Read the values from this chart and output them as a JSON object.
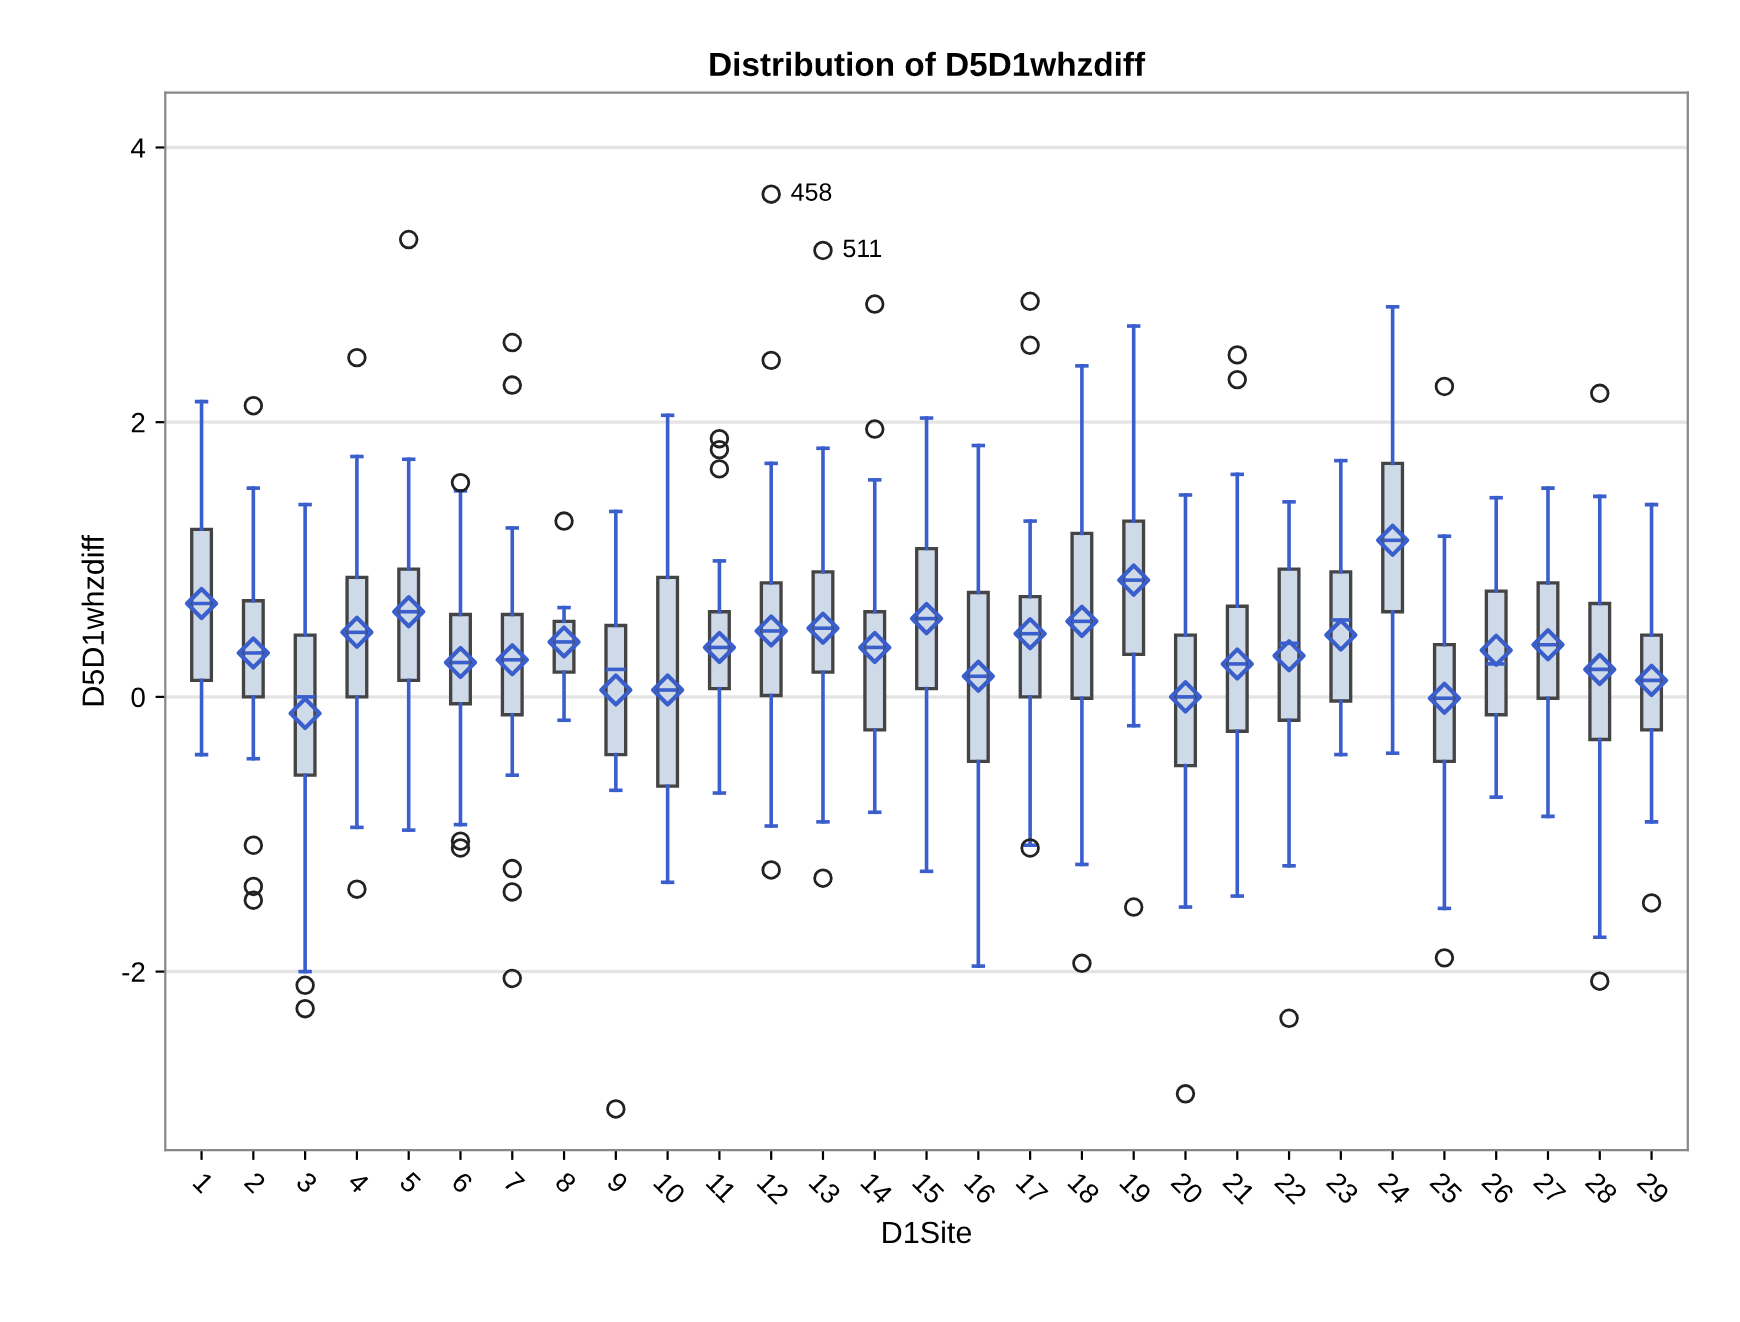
{
  "chart_data": {
    "type": "box",
    "title": "Distribution of D5D1whzdiff",
    "xlabel": "D1Site",
    "ylabel": "D5D1whzdiff",
    "categories": [
      "1",
      "2",
      "3",
      "4",
      "5",
      "6",
      "7",
      "8",
      "9",
      "10",
      "11",
      "12",
      "13",
      "14",
      "15",
      "16",
      "17",
      "18",
      "19",
      "20",
      "21",
      "22",
      "23",
      "24",
      "25",
      "26",
      "27",
      "28",
      "29"
    ],
    "series": [
      {
        "color": "#cfdae9",
        "boxes": [
          {
            "low": -0.42,
            "q1": 0.12,
            "median": 0.68,
            "q3": 1.22,
            "high": 2.15,
            "mean": 0.68
          },
          {
            "low": -0.45,
            "q1": 0.0,
            "median": 0.32,
            "q3": 0.7,
            "high": 1.52,
            "mean": 0.32,
            "outliers": [
              2.12,
              -1.08,
              -1.38,
              -1.48
            ]
          },
          {
            "low": -2.0,
            "q1": -0.57,
            "median": 0.0,
            "q3": 0.45,
            "high": 1.4,
            "mean": -0.12,
            "outliers": [
              -2.1,
              -2.27
            ]
          },
          {
            "low": -0.95,
            "q1": 0.0,
            "median": 0.47,
            "q3": 0.87,
            "high": 1.75,
            "mean": 0.47,
            "outliers": [
              2.47,
              -1.4
            ]
          },
          {
            "low": -0.97,
            "q1": 0.12,
            "median": 0.62,
            "q3": 0.93,
            "high": 1.73,
            "mean": 0.62,
            "outliers": [
              3.33
            ]
          },
          {
            "low": -0.93,
            "q1": -0.05,
            "median": 0.25,
            "q3": 0.6,
            "high": 1.5,
            "mean": 0.25,
            "outliers": [
              1.56,
              -1.05,
              -1.1
            ]
          },
          {
            "low": -0.57,
            "q1": -0.13,
            "median": 0.27,
            "q3": 0.6,
            "high": 1.23,
            "mean": 0.27,
            "outliers": [
              2.58,
              2.27,
              -1.25,
              -1.42,
              -2.05
            ]
          },
          {
            "low": -0.17,
            "q1": 0.18,
            "median": 0.4,
            "q3": 0.55,
            "high": 0.65,
            "mean": 0.4,
            "outliers": [
              1.28
            ]
          },
          {
            "low": -0.68,
            "q1": -0.42,
            "median": 0.2,
            "q3": 0.52,
            "high": 1.35,
            "mean": 0.05,
            "outliers": [
              -3.0
            ]
          },
          {
            "low": -1.35,
            "q1": -0.65,
            "median": 0.05,
            "q3": 0.87,
            "high": 2.05,
            "mean": 0.05
          },
          {
            "low": -0.7,
            "q1": 0.06,
            "median": 0.36,
            "q3": 0.62,
            "high": 0.99,
            "mean": 0.36,
            "outliers": [
              1.66,
              1.8,
              1.88
            ]
          },
          {
            "low": -0.94,
            "q1": 0.01,
            "median": 0.48,
            "q3": 0.83,
            "high": 1.7,
            "mean": 0.48,
            "outliers": [
              3.66,
              2.45,
              -1.26
            ]
          },
          {
            "low": -0.91,
            "q1": 0.18,
            "median": 0.5,
            "q3": 0.91,
            "high": 1.81,
            "mean": 0.5,
            "outliers": [
              3.25,
              -1.32
            ]
          },
          {
            "low": -0.84,
            "q1": -0.24,
            "median": 0.36,
            "q3": 0.62,
            "high": 1.58,
            "mean": 0.36,
            "outliers": [
              2.86,
              1.95
            ]
          },
          {
            "low": -1.27,
            "q1": 0.06,
            "median": 0.57,
            "q3": 1.08,
            "high": 2.03,
            "mean": 0.57
          },
          {
            "low": -1.96,
            "q1": -0.47,
            "median": 0.15,
            "q3": 0.76,
            "high": 1.83,
            "mean": 0.15
          },
          {
            "low": -1.08,
            "q1": 0.0,
            "median": 0.46,
            "q3": 0.73,
            "high": 1.28,
            "mean": 0.46,
            "outliers": [
              2.88,
              2.56,
              -1.1
            ]
          },
          {
            "low": -1.22,
            "q1": -0.01,
            "median": 0.55,
            "q3": 1.19,
            "high": 2.41,
            "mean": 0.55,
            "outliers": [
              -1.94
            ]
          },
          {
            "low": -0.21,
            "q1": 0.31,
            "median": 0.85,
            "q3": 1.28,
            "high": 2.7,
            "mean": 0.85,
            "outliers": [
              -1.53
            ]
          },
          {
            "low": -1.53,
            "q1": -0.5,
            "median": 0.0,
            "q3": 0.45,
            "high": 1.47,
            "mean": 0.0,
            "outliers": [
              -2.89
            ]
          },
          {
            "low": -1.45,
            "q1": -0.25,
            "median": 0.24,
            "q3": 0.66,
            "high": 1.62,
            "mean": 0.24,
            "outliers": [
              2.49,
              2.31
            ]
          },
          {
            "low": -1.23,
            "q1": -0.17,
            "median": 0.39,
            "q3": 0.93,
            "high": 1.42,
            "mean": 0.3,
            "outliers": [
              -2.34
            ]
          },
          {
            "low": -0.42,
            "q1": -0.03,
            "median": 0.56,
            "q3": 0.91,
            "high": 1.72,
            "mean": 0.45
          },
          {
            "low": -0.41,
            "q1": 0.62,
            "median": 1.14,
            "q3": 1.7,
            "high": 2.84,
            "mean": 1.14
          },
          {
            "low": -1.54,
            "q1": -0.47,
            "median": -0.01,
            "q3": 0.38,
            "high": 1.17,
            "mean": -0.01,
            "outliers": [
              2.26,
              -1.9
            ]
          },
          {
            "low": -0.73,
            "q1": -0.13,
            "median": 0.24,
            "q3": 0.77,
            "high": 1.45,
            "mean": 0.34
          },
          {
            "low": -0.87,
            "q1": -0.01,
            "median": 0.38,
            "q3": 0.83,
            "high": 1.52,
            "mean": 0.38
          },
          {
            "low": -1.75,
            "q1": -0.31,
            "median": 0.2,
            "q3": 0.68,
            "high": 1.46,
            "mean": 0.2,
            "outliers": [
              2.21,
              -2.07
            ]
          },
          {
            "low": -0.91,
            "q1": -0.24,
            "median": 0.12,
            "q3": 0.45,
            "high": 1.4,
            "mean": 0.12,
            "outliers": [
              -1.5
            ]
          }
        ]
      }
    ],
    "ylim": [
      -3.3,
      4.4
    ],
    "yticks": [
      {
        "value": -2,
        "label": "-2"
      },
      0,
      2,
      4
    ],
    "grid": "y",
    "marker": "diamond",
    "annotations": [
      "458",
      "511"
    ]
  }
}
